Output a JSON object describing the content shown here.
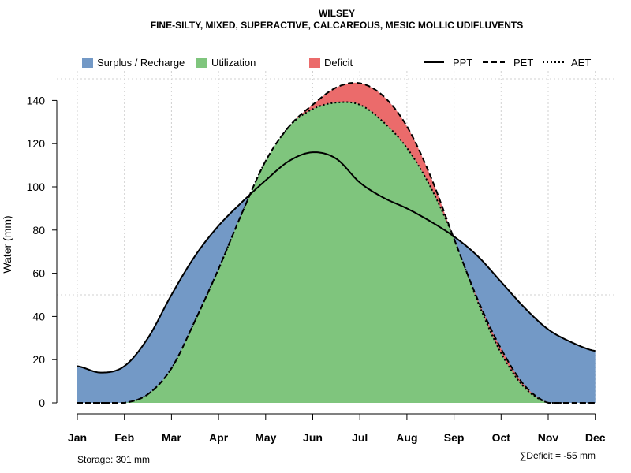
{
  "header": {
    "title": "WILSEY",
    "subtitle": "FINE-SILTY, MIXED, SUPERACTIVE, CALCAREOUS, MESIC MOLLIC UDIFLUVENTS"
  },
  "legend": {
    "surplus": "Surplus / Recharge",
    "utilization": "Utilization",
    "deficit": "Deficit",
    "ppt": "PPT",
    "pet": "PET",
    "aet": "AET"
  },
  "footer": {
    "storage": "Storage: 301 mm",
    "deficit": "∑Deficit = -55 mm"
  },
  "colors": {
    "surplus": "#7399C6",
    "utilization": "#7FC57D",
    "deficit": "#EB6B6B"
  },
  "chart_data": {
    "type": "area",
    "title": "WILSEY",
    "subtitle": "FINE-SILTY, MIXED, SUPERACTIVE, CALCAREOUS, MESIC MOLLIC UDIFLUVENTS",
    "xlabel": "",
    "ylabel": "Water (mm)",
    "ylim": [
      0,
      150
    ],
    "yticks": [
      0,
      20,
      40,
      60,
      80,
      100,
      120,
      140
    ],
    "categories": [
      "Jan",
      "Feb",
      "Mar",
      "Apr",
      "May",
      "Jun",
      "Jul",
      "Aug",
      "Sep",
      "Oct",
      "Nov",
      "Dec"
    ],
    "grid": true,
    "series": [
      {
        "name": "PPT",
        "style": "solid",
        "x": [
          1,
          1.5,
          2,
          2.5,
          3,
          3.5,
          4,
          4.5,
          5,
          5.5,
          6,
          6.5,
          7,
          7.5,
          8,
          8.5,
          9,
          9.5,
          10,
          10.5,
          11,
          11.5,
          12
        ],
        "values": [
          17,
          14,
          17,
          30,
          50,
          68,
          82,
          93,
          103,
          112,
          116,
          113,
          102,
          95,
          90,
          84,
          77,
          68,
          56,
          44,
          34,
          28,
          24
        ]
      },
      {
        "name": "PET",
        "style": "dashed",
        "x": [
          1,
          1.5,
          2,
          2.5,
          3,
          3.5,
          4,
          4.5,
          5,
          5.5,
          6,
          6.5,
          7,
          7.5,
          8,
          8.5,
          9,
          9.5,
          10,
          10.5,
          11,
          11.5,
          12
        ],
        "values": [
          0,
          0,
          0,
          4,
          16,
          38,
          62,
          88,
          112,
          128,
          138,
          146,
          148,
          142,
          128,
          105,
          76,
          48,
          25,
          8,
          0,
          0,
          0
        ]
      },
      {
        "name": "AET",
        "style": "dotted",
        "x": [
          1,
          1.5,
          2,
          2.5,
          3,
          3.5,
          4,
          4.5,
          5,
          5.5,
          6,
          6.5,
          7,
          7.5,
          8,
          8.5,
          9,
          9.5,
          10,
          10.5,
          11,
          11.5,
          12
        ],
        "values": [
          0,
          0,
          0,
          4,
          16,
          38,
          62,
          88,
          112,
          128,
          136,
          139,
          138,
          130,
          118,
          100,
          76,
          47,
          23,
          7,
          0,
          0,
          0
        ]
      }
    ],
    "legend_position": "top"
  }
}
